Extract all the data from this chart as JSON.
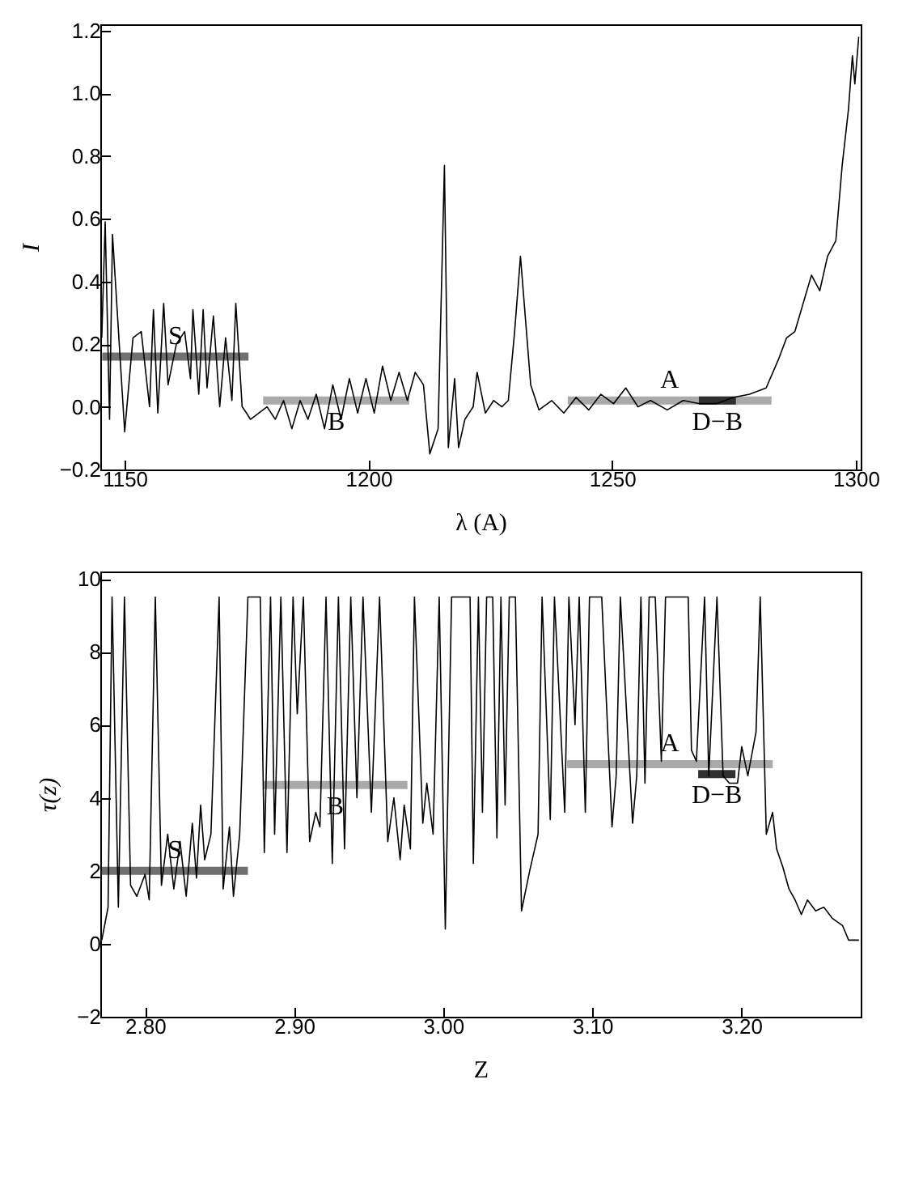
{
  "chart_data": [
    {
      "type": "line",
      "xlabel": "λ (A)",
      "ylabel": "I",
      "xlim": [
        1145,
        1301
      ],
      "ylim": [
        -0.2,
        1.22
      ],
      "xticks": [
        1150,
        1200,
        1250,
        1300
      ],
      "yticks": [
        {
          "value": -0.2,
          "label": "−0.2"
        },
        {
          "value": 0,
          "label": "0.0"
        },
        {
          "value": 0.2,
          "label": "0.2"
        },
        {
          "value": 0.4,
          "label": "0.4"
        },
        {
          "value": 0.6,
          "label": "0.6"
        },
        {
          "value": 0.8,
          "label": "0.8"
        },
        {
          "value": 1,
          "label": "1.0"
        },
        {
          "value": 1.2,
          "label": "1.2"
        }
      ],
      "grid": false,
      "series": [
        {
          "color": "#000000",
          "x": [
            1145.3,
            1146.0,
            1146.9,
            1147.5,
            1150.0,
            1151.7,
            1153.4,
            1155.1,
            1155.9,
            1156.8,
            1158.0,
            1158.9,
            1160.6,
            1162.3,
            1163.5,
            1164.0,
            1165.2,
            1166.1,
            1166.9,
            1168.2,
            1169.5,
            1170.7,
            1172.0,
            1172.8,
            1174.1,
            1175.0,
            1175.8,
            1177.5,
            1179.2,
            1180.9,
            1182.6,
            1184.3,
            1186.0,
            1187.6,
            1189.3,
            1191.0,
            1192.7,
            1194.4,
            1196.1,
            1197.8,
            1199.5,
            1201.2,
            1202.9,
            1204.6,
            1206.3,
            1208.0,
            1209.6,
            1211.3,
            1212.6,
            1214.3,
            1215.6,
            1216.4,
            1217.7,
            1218.5,
            1219.8,
            1221.5,
            1222.3,
            1224.0,
            1225.7,
            1227.4,
            1228.7,
            1230.0,
            1231.2,
            1233.3,
            1235.0,
            1237.6,
            1240.1,
            1242.6,
            1245.2,
            1247.7,
            1250.3,
            1252.8,
            1255.3,
            1257.9,
            1261.3,
            1264.6,
            1268.0,
            1271.4,
            1274.8,
            1278.2,
            1281.6,
            1284.1,
            1285.8,
            1287.5,
            1289.2,
            1290.9,
            1292.6,
            1294.2,
            1295.9,
            1297.2,
            1298.5,
            1299.3,
            1299.8,
            1300.6
          ],
          "values": [
            0.22,
            0.59,
            -0.04,
            0.55,
            -0.08,
            0.22,
            0.24,
            0.0,
            0.31,
            -0.02,
            0.33,
            0.07,
            0.2,
            0.24,
            0.09,
            0.31,
            0.04,
            0.31,
            0.06,
            0.29,
            0.0,
            0.22,
            0.02,
            0.33,
            0.0,
            -0.02,
            -0.04,
            -0.02,
            0.0,
            -0.04,
            0.02,
            -0.07,
            0.02,
            -0.04,
            0.04,
            -0.07,
            0.07,
            -0.04,
            0.09,
            -0.02,
            0.09,
            -0.02,
            0.13,
            0.02,
            0.11,
            0.02,
            0.11,
            0.07,
            -0.15,
            -0.07,
            0.77,
            -0.13,
            0.09,
            -0.13,
            -0.04,
            0.0,
            0.11,
            -0.02,
            0.02,
            0.0,
            0.02,
            0.24,
            0.48,
            0.07,
            -0.01,
            0.02,
            -0.02,
            0.03,
            -0.01,
            0.04,
            0.01,
            0.06,
            0.0,
            0.02,
            -0.01,
            0.02,
            0.01,
            0.01,
            0.03,
            0.04,
            0.06,
            0.15,
            0.22,
            0.24,
            0.33,
            0.42,
            0.37,
            0.48,
            0.53,
            0.77,
            0.95,
            1.12,
            1.03,
            1.18
          ]
        },
        {
          "name": "S",
          "color": "#707070",
          "x": [
            1145.4,
            1175.4
          ],
          "values": [
            0.16,
            0.16
          ]
        },
        {
          "name": "B",
          "color": "#aaaaaa",
          "x": [
            1178.4,
            1208.4
          ],
          "values": [
            0.02,
            0.02
          ]
        },
        {
          "name": "A",
          "color": "#aaaaaa",
          "x": [
            1240.9,
            1282.7
          ],
          "values": [
            0.02,
            0.02
          ]
        },
        {
          "name": "D−B",
          "color": "#303030",
          "x": [
            1267.8,
            1275.4
          ],
          "values": [
            0.02,
            0.02
          ]
        }
      ]
    },
    {
      "type": "line",
      "xlabel": "Z",
      "ylabel": "τ(z)",
      "xlim": [
        2.77,
        3.28
      ],
      "ylim": [
        -2,
        10.2
      ],
      "xticks": [
        {
          "value": 2.8,
          "label": "2.80"
        },
        {
          "value": 2.9,
          "label": "2.90"
        },
        {
          "value": 3,
          "label": "3.00"
        },
        {
          "value": 3.1,
          "label": "3.10"
        },
        {
          "value": 3.2,
          "label": "3.20"
        }
      ],
      "yticks": [
        {
          "value": -2,
          "label": "−2"
        },
        0,
        2,
        4,
        6,
        8,
        10
      ],
      "grid": false,
      "series": [
        {
          "color": "#000000",
          "x": [
            2.771,
            2.7752,
            2.7779,
            2.7821,
            2.7862,
            2.7903,
            2.7945,
            2.8,
            2.8028,
            2.8069,
            2.811,
            2.8152,
            2.8193,
            2.8235,
            2.8276,
            2.8317,
            2.8345,
            2.8373,
            2.84,
            2.8442,
            2.8497,
            2.8524,
            2.8566,
            2.8593,
            2.8635,
            2.869,
            2.8773,
            2.88,
            2.8842,
            2.8869,
            2.8911,
            2.8952,
            2.8993,
            2.9021,
            2.9062,
            2.9104,
            2.9145,
            2.9173,
            2.9214,
            2.9256,
            2.9297,
            2.9338,
            2.938,
            2.9421,
            2.9462,
            2.9518,
            2.9573,
            2.9628,
            2.9669,
            2.9711,
            2.9738,
            2.978,
            2.9807,
            2.9863,
            2.989,
            2.9932,
            2.9973,
            3.0014,
            3.0056,
            3.007,
            3.018,
            3.0202,
            3.0236,
            3.0263,
            3.0291,
            3.0332,
            3.036,
            3.0387,
            3.0415,
            3.0443,
            3.0484,
            3.0525,
            3.058,
            3.0636,
            3.0663,
            3.0718,
            3.0746,
            3.0815,
            3.0843,
            3.0884,
            3.0912,
            3.0953,
            3.0981,
            3.1022,
            3.1063,
            3.1132,
            3.116,
            3.1188,
            3.127,
            3.1298,
            3.1326,
            3.1353,
            3.1381,
            3.1422,
            3.1463,
            3.1491,
            3.1643,
            3.1665,
            3.1698,
            3.1753,
            3.1781,
            3.1836,
            3.1877,
            3.1919,
            3.1974,
            3.2002,
            3.2043,
            3.2098,
            3.2126,
            3.2167,
            3.2209,
            3.2236,
            3.2278,
            3.2319,
            3.236,
            3.2402,
            3.2443,
            3.2498,
            3.2553,
            3.2609,
            3.2678,
            3.2719,
            3.2788
          ],
          "values": [
            0.1,
            1.0,
            9.5,
            1.0,
            9.5,
            1.6,
            1.3,
            1.9,
            1.2,
            9.5,
            1.6,
            3.0,
            1.5,
            2.8,
            1.3,
            3.3,
            1.8,
            3.8,
            2.3,
            3.0,
            9.5,
            1.5,
            3.2,
            1.3,
            3.0,
            9.5,
            9.5,
            2.5,
            9.5,
            3.0,
            9.5,
            2.5,
            9.5,
            6.3,
            9.5,
            2.8,
            3.6,
            3.2,
            9.5,
            2.2,
            9.5,
            2.6,
            9.5,
            4.0,
            9.5,
            3.6,
            9.5,
            2.8,
            4.0,
            2.3,
            3.8,
            2.6,
            9.5,
            3.3,
            4.4,
            3.0,
            9.5,
            0.4,
            9.5,
            9.5,
            9.5,
            2.2,
            9.5,
            3.6,
            9.5,
            9.5,
            2.9,
            9.5,
            3.8,
            9.5,
            9.5,
            0.9,
            2.0,
            3.0,
            9.5,
            3.4,
            9.5,
            3.6,
            9.5,
            6.0,
            9.5,
            3.6,
            9.5,
            9.5,
            9.5,
            3.2,
            4.6,
            9.5,
            3.3,
            4.6,
            9.5,
            4.4,
            9.5,
            9.5,
            5.0,
            9.5,
            9.5,
            5.3,
            5.0,
            9.5,
            4.6,
            9.5,
            4.6,
            4.4,
            4.4,
            5.4,
            4.6,
            5.8,
            9.5,
            3.0,
            3.6,
            2.6,
            2.1,
            1.5,
            1.2,
            0.8,
            1.2,
            0.9,
            1.0,
            0.7,
            0.5,
            0.1,
            0.1
          ]
        },
        {
          "name": "S",
          "color": "#707070",
          "x": [
            2.771,
            2.869
          ],
          "values": [
            2.0,
            2.0
          ]
        },
        {
          "name": "B",
          "color": "#aaaaaa",
          "x": [
            2.879,
            2.976
          ],
          "values": [
            4.35,
            4.35
          ]
        },
        {
          "name": "A",
          "color": "#aaaaaa",
          "x": [
            3.083,
            3.221
          ],
          "values": [
            4.92,
            4.92
          ]
        },
        {
          "name": "D−B",
          "color": "#303030",
          "x": [
            3.171,
            3.196
          ],
          "values": [
            4.65,
            4.65
          ]
        }
      ]
    }
  ]
}
